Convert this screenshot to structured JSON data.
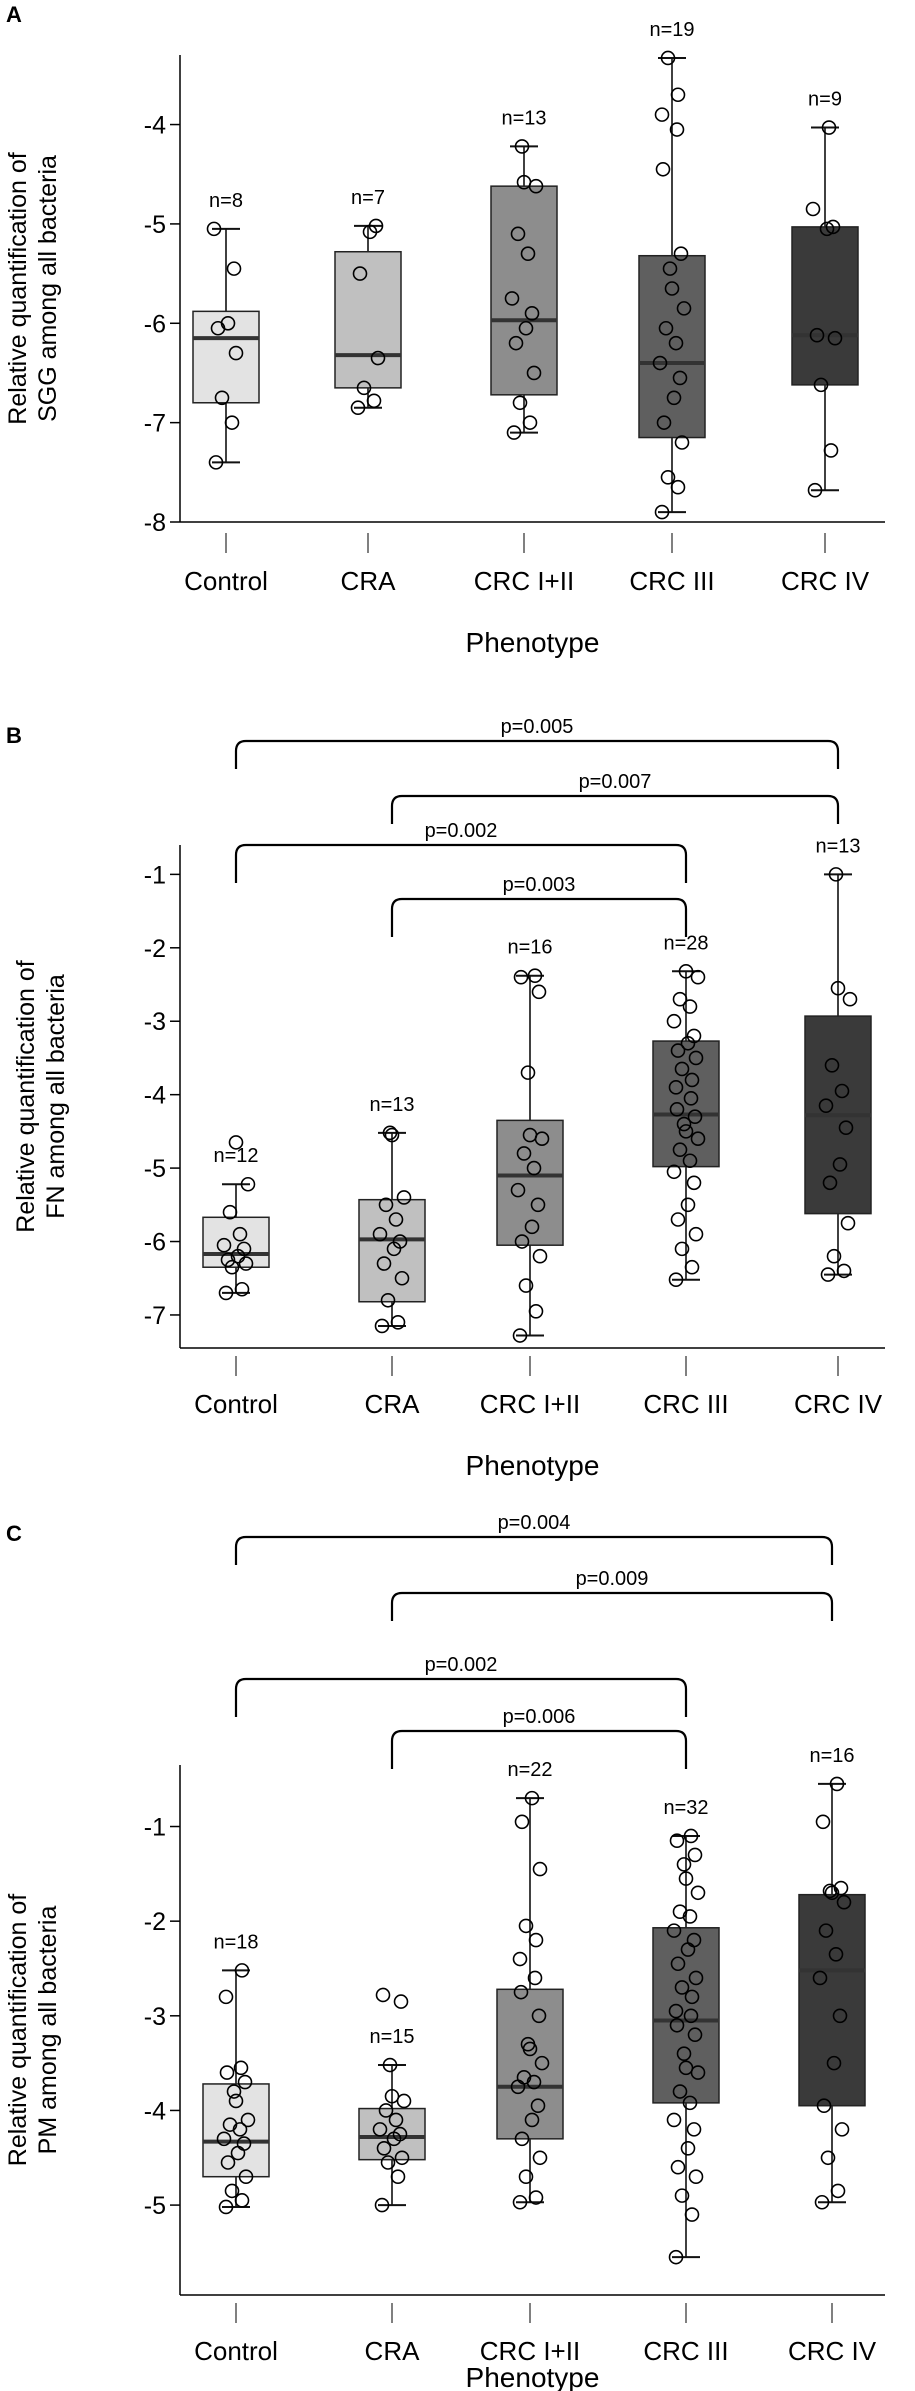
{
  "figure": {
    "colors": {
      "Control": "#e3e3e3",
      "CRA": "#c0c0c0",
      "CRC I+II": "#8d8d8d",
      "CRC III": "#5f5f5f",
      "CRC IV": "#3a3a3a",
      "axis": "#000000",
      "median": "#333333"
    }
  },
  "chart_data": [
    {
      "panel": "A",
      "type": "box",
      "xlabel": "Phenotype",
      "ylabel": [
        "Relative quantification of",
        "SGG among all bacteria"
      ],
      "categories": [
        "Control",
        "CRA",
        "CRC I+II",
        "CRC III",
        "CRC IV"
      ],
      "ylim": [
        -8,
        -3.3
      ],
      "yticks": [
        -4,
        -5,
        -6,
        -7,
        -8
      ],
      "n_labels": [
        "n=8",
        "n=7",
        "n=13",
        "n=19",
        "n=9"
      ],
      "boxes": [
        {
          "min": -7.4,
          "q1": -6.8,
          "median": -6.15,
          "q3": -5.88,
          "max": -5.05
        },
        {
          "min": -6.85,
          "q1": -6.65,
          "median": -6.32,
          "q3": -5.28,
          "max": -5.02
        },
        {
          "min": -7.1,
          "q1": -6.72,
          "median": -5.97,
          "q3": -4.62,
          "max": -4.22
        },
        {
          "min": -7.9,
          "q1": -7.15,
          "median": -6.4,
          "q3": -5.32,
          "max": -3.33
        },
        {
          "min": -7.68,
          "q1": -6.62,
          "median": -6.12,
          "q3": -5.03,
          "max": -4.03
        }
      ],
      "points": [
        [
          -7.4,
          -7.0,
          -6.75,
          -6.3,
          -6.05,
          -6.0,
          -5.45,
          -5.05
        ],
        [
          -6.85,
          -6.78,
          -6.65,
          -6.35,
          -5.5,
          -5.08,
          -5.02
        ],
        [
          -7.1,
          -7.0,
          -6.8,
          -6.5,
          -6.2,
          -6.05,
          -5.9,
          -5.75,
          -5.3,
          -5.1,
          -4.62,
          -4.58,
          -4.22
        ],
        [
          -7.9,
          -7.65,
          -7.55,
          -7.2,
          -7.0,
          -6.75,
          -6.55,
          -6.4,
          -6.2,
          -6.05,
          -5.85,
          -5.65,
          -5.45,
          -5.3,
          -4.45,
          -4.05,
          -3.9,
          -3.7,
          -3.33
        ],
        [
          -7.68,
          -7.28,
          -6.62,
          -6.15,
          -6.12,
          -5.05,
          -5.03,
          -4.85,
          -4.03
        ]
      ],
      "comparisons": []
    },
    {
      "panel": "B",
      "type": "box",
      "xlabel": "Phenotype",
      "ylabel": [
        "Relative quantification of",
        "FN among all bacteria"
      ],
      "categories": [
        "Control",
        "CRA",
        "CRC I+II",
        "CRC III",
        "CRC IV"
      ],
      "ylim": [
        -7.45,
        -0.6
      ],
      "yticks": [
        -1,
        -2,
        -3,
        -4,
        -5,
        -6,
        -7
      ],
      "n_labels": [
        "n=12",
        "n=13",
        "n=16",
        "n=28",
        "n=13"
      ],
      "boxes": [
        {
          "min": -6.7,
          "q1": -6.35,
          "median": -6.17,
          "q3": -5.67,
          "max": -5.22
        },
        {
          "min": -7.15,
          "q1": -6.82,
          "median": -5.97,
          "q3": -5.43,
          "max": -4.52
        },
        {
          "min": -7.28,
          "q1": -6.05,
          "median": -5.1,
          "q3": -4.35,
          "max": -2.38
        },
        {
          "min": -6.52,
          "q1": -4.98,
          "median": -4.27,
          "q3": -3.27,
          "max": -2.32
        },
        {
          "min": -6.45,
          "q1": -5.62,
          "median": -4.28,
          "q3": -2.93,
          "max": -1.0
        }
      ],
      "points": [
        [
          -6.7,
          -6.65,
          -6.35,
          -6.3,
          -6.25,
          -6.2,
          -6.1,
          -6.05,
          -5.9,
          -5.6,
          -5.22,
          -4.65
        ],
        [
          -7.15,
          -7.1,
          -6.8,
          -6.5,
          -6.3,
          -6.1,
          -6.0,
          -5.9,
          -5.7,
          -5.5,
          -5.4,
          -4.55,
          -4.52
        ],
        [
          -7.28,
          -6.95,
          -6.6,
          -6.2,
          -6.0,
          -5.8,
          -5.5,
          -5.3,
          -5.0,
          -4.8,
          -4.6,
          -4.55,
          -3.7,
          -2.6,
          -2.4,
          -2.38
        ],
        [
          -6.52,
          -6.35,
          -6.1,
          -5.9,
          -5.7,
          -5.5,
          -5.2,
          -5.05,
          -4.9,
          -4.75,
          -4.6,
          -4.5,
          -4.4,
          -4.3,
          -4.2,
          -4.05,
          -3.9,
          -3.8,
          -3.65,
          -3.5,
          -3.4,
          -3.3,
          -3.2,
          -3.0,
          -2.8,
          -2.7,
          -2.4,
          -2.32
        ],
        [
          -6.45,
          -6.4,
          -6.2,
          -5.75,
          -5.2,
          -4.95,
          -4.45,
          -4.15,
          -3.95,
          -3.6,
          -2.7,
          -2.55,
          -1.0
        ]
      ],
      "comparisons": [
        {
          "from": "Control",
          "to": "CRC IV",
          "label": "p=0.005"
        },
        {
          "from": "CRA",
          "to": "CRC IV",
          "label": "p=0.007"
        },
        {
          "from": "Control",
          "to": "CRC III",
          "label": "p=0.002"
        },
        {
          "from": "CRA",
          "to": "CRC III",
          "label": "p=0.003"
        }
      ]
    },
    {
      "panel": "C",
      "type": "box",
      "xlabel": "Phenotype",
      "ylabel": [
        "Relative quantification of",
        "PM among all bacteria"
      ],
      "categories": [
        "Control",
        "CRA",
        "CRC I+II",
        "CRC III",
        "CRC IV"
      ],
      "ylim": [
        -5.95,
        -0.35
      ],
      "yticks": [
        -1,
        -2,
        -3,
        -4,
        -5
      ],
      "n_labels": [
        "n=18",
        "n=15",
        "n=22",
        "n=32",
        "n=16"
      ],
      "boxes": [
        {
          "min": -5.02,
          "q1": -4.7,
          "median": -4.33,
          "q3": -3.72,
          "max": -2.52
        },
        {
          "min": -5.0,
          "q1": -4.52,
          "median": -4.28,
          "q3": -3.98,
          "max": -3.52
        },
        {
          "min": -4.97,
          "q1": -4.3,
          "median": -3.75,
          "q3": -2.72,
          "max": -0.7
        },
        {
          "min": -5.55,
          "q1": -3.92,
          "median": -3.05,
          "q3": -2.07,
          "max": -1.1
        },
        {
          "min": -4.97,
          "q1": -3.95,
          "median": -2.52,
          "q3": -1.72,
          "max": -0.55
        }
      ],
      "points": [
        [
          -5.02,
          -4.95,
          -4.85,
          -4.7,
          -4.55,
          -4.45,
          -4.35,
          -4.3,
          -4.2,
          -4.15,
          -4.1,
          -3.9,
          -3.8,
          -3.7,
          -3.6,
          -3.55,
          -2.8,
          -2.52
        ],
        [
          -5.0,
          -4.7,
          -4.55,
          -4.5,
          -4.4,
          -4.3,
          -4.25,
          -4.2,
          -4.1,
          -4.0,
          -3.9,
          -3.85,
          -3.52,
          -2.85,
          -2.78
        ],
        [
          -4.97,
          -4.92,
          -4.7,
          -4.5,
          -4.3,
          -4.1,
          -3.95,
          -3.75,
          -3.7,
          -3.65,
          -3.5,
          -3.35,
          -3.3,
          -3.0,
          -2.75,
          -2.6,
          -2.4,
          -2.2,
          -2.05,
          -1.45,
          -0.95,
          -0.7
        ],
        [
          -5.55,
          -5.1,
          -4.9,
          -4.7,
          -4.6,
          -4.4,
          -4.2,
          -4.1,
          -3.92,
          -3.8,
          -3.6,
          -3.55,
          -3.4,
          -3.2,
          -3.1,
          -3.0,
          -2.95,
          -2.8,
          -2.7,
          -2.6,
          -2.45,
          -2.3,
          -2.2,
          -2.1,
          -1.95,
          -1.9,
          -1.7,
          -1.55,
          -1.4,
          -1.3,
          -1.15,
          -1.1
        ],
        [
          -4.97,
          -4.85,
          -4.5,
          -4.2,
          -3.95,
          -3.5,
          -3.0,
          -2.6,
          -2.35,
          -2.1,
          -1.8,
          -1.7,
          -1.68,
          -1.65,
          -0.95,
          -0.55
        ]
      ],
      "comparisons": [
        {
          "from": "Control",
          "to": "CRC IV",
          "label": "p=0.004"
        },
        {
          "from": "CRA",
          "to": "CRC IV",
          "label": "p=0.009"
        },
        {
          "from": "Control",
          "to": "CRC III",
          "label": "p=0.002"
        },
        {
          "from": "CRA",
          "to": "CRC III",
          "label": "p=0.006"
        }
      ]
    }
  ]
}
